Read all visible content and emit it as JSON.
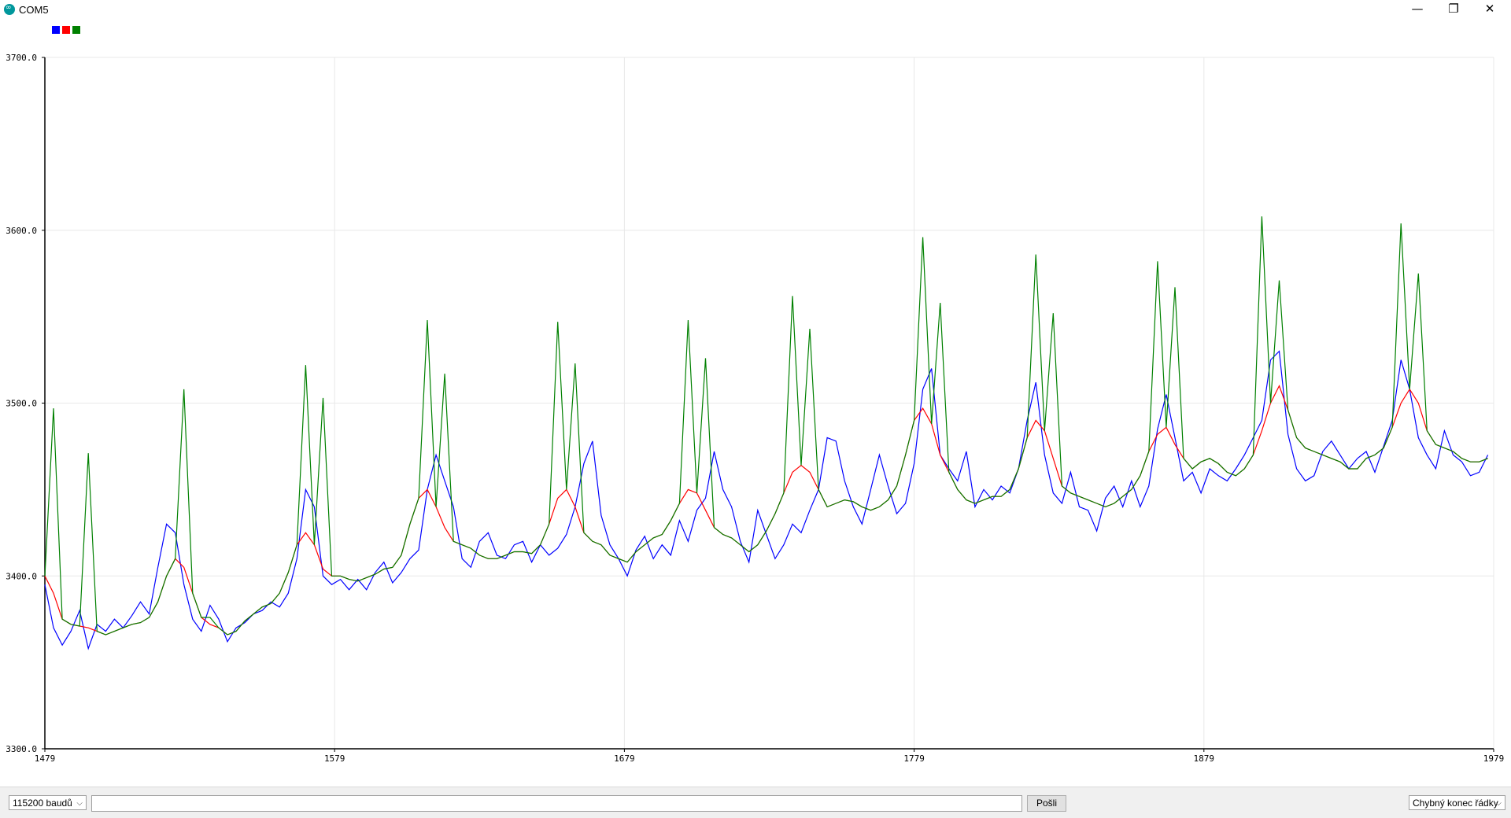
{
  "window": {
    "title": "COM5",
    "minimize_glyph": "—",
    "maximize_glyph": "❐",
    "close_glyph": "✕",
    "app_icon_glyph": "∞"
  },
  "legend": {
    "colors": [
      "#0000ff",
      "#ff0000",
      "#008000"
    ]
  },
  "chart_data": {
    "type": "line",
    "title": "",
    "xlabel": "",
    "ylabel": "",
    "ylim": [
      3300,
      3700
    ],
    "xlim": [
      1479,
      1979
    ],
    "grid": true,
    "y_ticks": [
      "3300.0",
      "3400.0",
      "3500.0",
      "3600.0",
      "3700.0"
    ],
    "x_ticks": [
      "1479",
      "1579",
      "1679",
      "1779",
      "1879",
      "1979"
    ],
    "series": [
      {
        "color": "#0000ff",
        "x": [
          1479,
          1482,
          1485,
          1488,
          1491,
          1494,
          1497,
          1500,
          1503,
          1506,
          1509,
          1512,
          1515,
          1518,
          1521,
          1524,
          1527,
          1530,
          1533,
          1536,
          1539,
          1542,
          1545,
          1548,
          1551,
          1554,
          1557,
          1560,
          1563,
          1566,
          1569,
          1572,
          1575,
          1578,
          1581,
          1584,
          1587,
          1590,
          1593,
          1596,
          1599,
          1602,
          1605,
          1608,
          1611,
          1614,
          1617,
          1620,
          1623,
          1626,
          1629,
          1632,
          1635,
          1638,
          1641,
          1644,
          1647,
          1650,
          1653,
          1656,
          1659,
          1662,
          1665,
          1668,
          1671,
          1674,
          1677,
          1680,
          1683,
          1686,
          1689,
          1692,
          1695,
          1698,
          1701,
          1704,
          1707,
          1710,
          1713,
          1716,
          1719,
          1722,
          1725,
          1728,
          1731,
          1734,
          1737,
          1740,
          1743,
          1746,
          1749,
          1752,
          1755,
          1758,
          1761,
          1764,
          1767,
          1770,
          1773,
          1776,
          1779,
          1782,
          1785,
          1788,
          1791,
          1794,
          1797,
          1800,
          1803,
          1806,
          1809,
          1812,
          1815,
          1818,
          1821,
          1824,
          1827,
          1830,
          1833,
          1836,
          1839,
          1842,
          1845,
          1848,
          1851,
          1854,
          1857,
          1860,
          1863,
          1866,
          1869,
          1872,
          1875,
          1878,
          1881,
          1884,
          1887,
          1890,
          1893,
          1896,
          1899,
          1902,
          1905,
          1908,
          1911,
          1914,
          1917,
          1920,
          1923,
          1926,
          1929,
          1932,
          1935,
          1938,
          1941,
          1944,
          1947,
          1950,
          1953,
          1956,
          1959,
          1962,
          1965,
          1968,
          1971,
          1974,
          1977
        ],
        "values": [
          3395,
          3370,
          3360,
          3368,
          3380,
          3358,
          3372,
          3368,
          3375,
          3370,
          3377,
          3385,
          3378,
          3405,
          3430,
          3425,
          3395,
          3375,
          3368,
          3383,
          3375,
          3362,
          3370,
          3373,
          3378,
          3380,
          3385,
          3382,
          3390,
          3410,
          3450,
          3440,
          3400,
          3395,
          3398,
          3392,
          3398,
          3392,
          3402,
          3408,
          3396,
          3402,
          3410,
          3415,
          3450,
          3470,
          3455,
          3440,
          3410,
          3405,
          3420,
          3425,
          3412,
          3410,
          3418,
          3420,
          3408,
          3418,
          3412,
          3416,
          3424,
          3440,
          3465,
          3478,
          3435,
          3418,
          3410,
          3400,
          3415,
          3423,
          3410,
          3418,
          3412,
          3432,
          3420,
          3438,
          3445,
          3472,
          3450,
          3440,
          3420,
          3408,
          3438,
          3424,
          3410,
          3418,
          3430,
          3425,
          3438,
          3450,
          3480,
          3478,
          3455,
          3440,
          3430,
          3450,
          3470,
          3452,
          3436,
          3442,
          3465,
          3508,
          3520,
          3470,
          3462,
          3455,
          3472,
          3440,
          3450,
          3444,
          3452,
          3448,
          3462,
          3490,
          3512,
          3470,
          3448,
          3442,
          3460,
          3440,
          3438,
          3426,
          3445,
          3452,
          3440,
          3455,
          3440,
          3452,
          3485,
          3505,
          3480,
          3455,
          3460,
          3448,
          3462,
          3458,
          3455,
          3462,
          3470,
          3480,
          3490,
          3525,
          3530,
          3482,
          3462,
          3455,
          3458,
          3472,
          3478,
          3470,
          3462,
          3468,
          3472,
          3460,
          3475,
          3490,
          3525,
          3508,
          3480,
          3470,
          3462,
          3484,
          3470,
          3466,
          3458,
          3460,
          3470
        ]
      },
      {
        "color": "#ff0000",
        "x": [
          1479,
          1482,
          1485,
          1488,
          1491,
          1494,
          1497,
          1500,
          1503,
          1506,
          1509,
          1512,
          1515,
          1518,
          1521,
          1524,
          1527,
          1530,
          1533,
          1536,
          1539,
          1542,
          1545,
          1548,
          1551,
          1554,
          1557,
          1560,
          1563,
          1566,
          1569,
          1572,
          1575,
          1578,
          1581,
          1584,
          1587,
          1590,
          1593,
          1596,
          1599,
          1602,
          1605,
          1608,
          1611,
          1614,
          1617,
          1620,
          1623,
          1626,
          1629,
          1632,
          1635,
          1638,
          1641,
          1644,
          1647,
          1650,
          1653,
          1656,
          1659,
          1662,
          1665,
          1668,
          1671,
          1674,
          1677,
          1680,
          1683,
          1686,
          1689,
          1692,
          1695,
          1698,
          1701,
          1704,
          1707,
          1710,
          1713,
          1716,
          1719,
          1722,
          1725,
          1728,
          1731,
          1734,
          1737,
          1740,
          1743,
          1746,
          1749,
          1752,
          1755,
          1758,
          1761,
          1764,
          1767,
          1770,
          1773,
          1776,
          1779,
          1782,
          1785,
          1788,
          1791,
          1794,
          1797,
          1800,
          1803,
          1806,
          1809,
          1812,
          1815,
          1818,
          1821,
          1824,
          1827,
          1830,
          1833,
          1836,
          1839,
          1842,
          1845,
          1848,
          1851,
          1854,
          1857,
          1860,
          1863,
          1866,
          1869,
          1872,
          1875,
          1878,
          1881,
          1884,
          1887,
          1890,
          1893,
          1896,
          1899,
          1902,
          1905,
          1908,
          1911,
          1914,
          1917,
          1920,
          1923,
          1926,
          1929,
          1932,
          1935,
          1938,
          1941,
          1944,
          1947,
          1950,
          1953,
          1956,
          1959,
          1962,
          1965,
          1968,
          1971,
          1974,
          1977
        ],
        "values": [
          3400,
          3390,
          3375,
          3372,
          3371,
          3370,
          3368,
          3366,
          3368,
          3370,
          3372,
          3373,
          3376,
          3385,
          3400,
          3410,
          3405,
          3390,
          3376,
          3372,
          3370,
          3366,
          3368,
          3374,
          3378,
          3382,
          3384,
          3390,
          3402,
          3418,
          3425,
          3418,
          3404,
          3400,
          3400,
          3398,
          3397,
          3399,
          3401,
          3404,
          3405,
          3412,
          3430,
          3445,
          3450,
          3440,
          3428,
          3420,
          3418,
          3416,
          3412,
          3410,
          3410,
          3412,
          3414,
          3414,
          3413,
          3418,
          3430,
          3445,
          3450,
          3440,
          3425,
          3420,
          3418,
          3412,
          3410,
          3408,
          3414,
          3418,
          3422,
          3424,
          3432,
          3442,
          3450,
          3448,
          3438,
          3428,
          3424,
          3422,
          3418,
          3414,
          3418,
          3426,
          3436,
          3448,
          3460,
          3464,
          3460,
          3450,
          3440,
          3442,
          3444,
          3443,
          3440,
          3438,
          3440,
          3444,
          3452,
          3470,
          3490,
          3497,
          3488,
          3470,
          3460,
          3450,
          3444,
          3442,
          3444,
          3446,
          3446,
          3450,
          3462,
          3480,
          3490,
          3484,
          3468,
          3452,
          3448,
          3446,
          3444,
          3442,
          3440,
          3442,
          3446,
          3450,
          3458,
          3472,
          3482,
          3486,
          3476,
          3468,
          3462,
          3466,
          3468,
          3465,
          3460,
          3458,
          3462,
          3470,
          3484,
          3500,
          3510,
          3496,
          3480,
          3474,
          3472,
          3470,
          3468,
          3466,
          3462,
          3462,
          3468,
          3470,
          3474,
          3486,
          3500,
          3508,
          3500,
          3484,
          3476,
          3474,
          3472,
          3468,
          3466,
          3466,
          3468
        ]
      },
      {
        "color": "#008000",
        "x": [
          1479,
          1482,
          1485,
          1488,
          1491,
          1494,
          1497,
          1500,
          1503,
          1506,
          1509,
          1512,
          1515,
          1518,
          1521,
          1524,
          1527,
          1530,
          1533,
          1536,
          1539,
          1542,
          1545,
          1548,
          1551,
          1554,
          1557,
          1560,
          1563,
          1566,
          1569,
          1572,
          1575,
          1578,
          1581,
          1584,
          1587,
          1590,
          1593,
          1596,
          1599,
          1602,
          1605,
          1608,
          1611,
          1614,
          1617,
          1620,
          1623,
          1626,
          1629,
          1632,
          1635,
          1638,
          1641,
          1644,
          1647,
          1650,
          1653,
          1656,
          1659,
          1662,
          1665,
          1668,
          1671,
          1674,
          1677,
          1680,
          1683,
          1686,
          1689,
          1692,
          1695,
          1698,
          1701,
          1704,
          1707,
          1710,
          1713,
          1716,
          1719,
          1722,
          1725,
          1728,
          1731,
          1734,
          1737,
          1740,
          1743,
          1746,
          1749,
          1752,
          1755,
          1758,
          1761,
          1764,
          1767,
          1770,
          1773,
          1776,
          1779,
          1782,
          1785,
          1788,
          1791,
          1794,
          1797,
          1800,
          1803,
          1806,
          1809,
          1812,
          1815,
          1818,
          1821,
          1824,
          1827,
          1830,
          1833,
          1836,
          1839,
          1842,
          1845,
          1848,
          1851,
          1854,
          1857,
          1860,
          1863,
          1866,
          1869,
          1872,
          1875,
          1878,
          1881,
          1884,
          1887,
          1890,
          1893,
          1896,
          1899,
          1902,
          1905,
          1908,
          1911,
          1914,
          1917,
          1920,
          1923,
          1926,
          1929,
          1932,
          1935,
          1938,
          1941,
          1944,
          1947,
          1950,
          1953,
          1956,
          1959,
          1962,
          1965,
          1968,
          1971,
          1974,
          1977
        ],
        "values": [
          3400,
          3497,
          3375,
          3372,
          3371,
          3471,
          3368,
          3366,
          3368,
          3370,
          3372,
          3373,
          3376,
          3385,
          3400,
          3410,
          3508,
          3390,
          3376,
          3376,
          3370,
          3366,
          3368,
          3374,
          3378,
          3382,
          3384,
          3390,
          3402,
          3418,
          3522,
          3418,
          3503,
          3400,
          3400,
          3398,
          3397,
          3399,
          3401,
          3404,
          3405,
          3412,
          3430,
          3445,
          3548,
          3440,
          3517,
          3420,
          3418,
          3416,
          3412,
          3410,
          3410,
          3412,
          3414,
          3414,
          3413,
          3418,
          3430,
          3547,
          3450,
          3523,
          3425,
          3420,
          3418,
          3412,
          3410,
          3408,
          3414,
          3418,
          3422,
          3424,
          3432,
          3442,
          3548,
          3448,
          3526,
          3428,
          3424,
          3422,
          3418,
          3414,
          3418,
          3426,
          3436,
          3448,
          3562,
          3464,
          3543,
          3450,
          3440,
          3442,
          3444,
          3443,
          3440,
          3438,
          3440,
          3444,
          3452,
          3470,
          3490,
          3596,
          3488,
          3558,
          3460,
          3450,
          3444,
          3442,
          3444,
          3446,
          3446,
          3450,
          3462,
          3480,
          3586,
          3484,
          3552,
          3452,
          3448,
          3446,
          3444,
          3442,
          3440,
          3442,
          3446,
          3450,
          3458,
          3472,
          3582,
          3486,
          3567,
          3468,
          3462,
          3466,
          3468,
          3465,
          3460,
          3458,
          3462,
          3470,
          3608,
          3500,
          3571,
          3496,
          3480,
          3474,
          3472,
          3470,
          3468,
          3466,
          3462,
          3462,
          3468,
          3470,
          3474,
          3486,
          3604,
          3508,
          3575,
          3484,
          3476,
          3474,
          3472,
          3468,
          3466,
          3466,
          3468
        ]
      }
    ]
  },
  "bottom_bar": {
    "baud_rate": "115200 baudů",
    "send_input_value": "",
    "send_button": "Pošli",
    "line_ending": "Chybný konec řádky",
    "chevron_glyph": "⌵"
  }
}
